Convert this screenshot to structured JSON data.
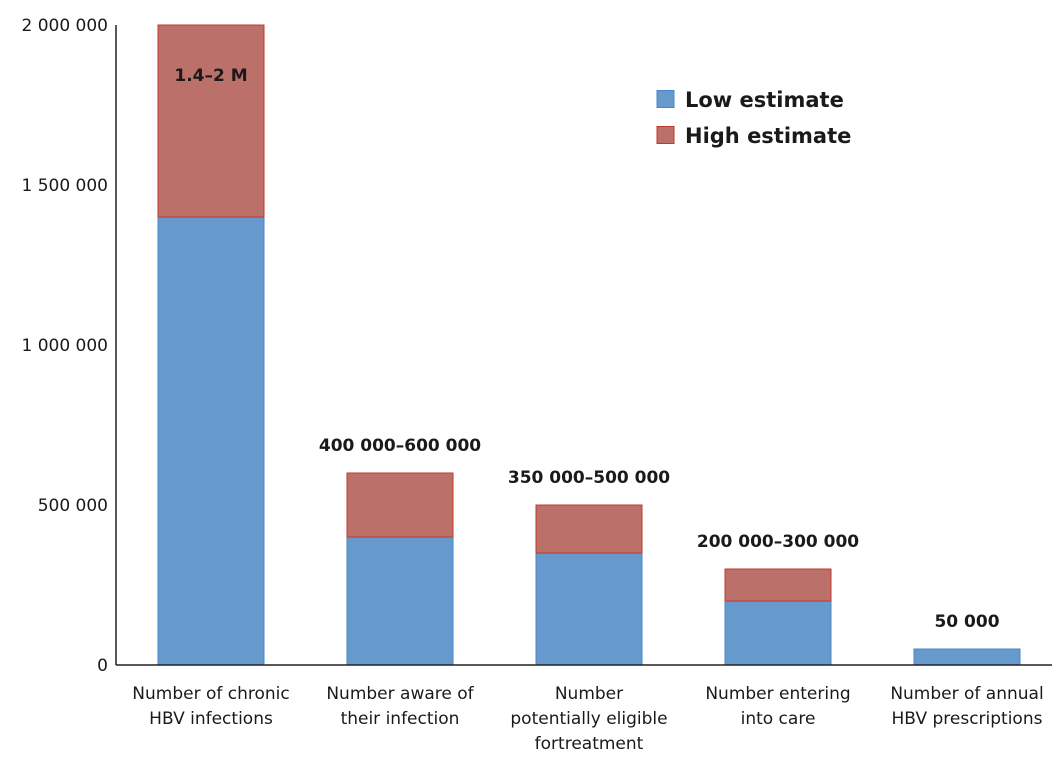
{
  "chart_data": {
    "type": "bar",
    "stacked": true,
    "title": "",
    "xlabel": "",
    "ylabel": "",
    "ylim": [
      0,
      2000000
    ],
    "yticks": [
      0,
      500000,
      1000000,
      1500000,
      2000000
    ],
    "ytick_labels": [
      "0",
      "500 000",
      "1 000 000",
      "1 500 000",
      "2 000 000"
    ],
    "grid": false,
    "legend_position": "top-right",
    "categories": [
      [
        "Number of chronic",
        "HBV infections"
      ],
      [
        "Number aware of",
        "their infection"
      ],
      [
        "Number",
        "potentially eligible",
        "fortreatment"
      ],
      [
        "Number entering",
        "into care"
      ],
      [
        "Number of annual",
        "HBV prescriptions"
      ]
    ],
    "series": [
      {
        "name": "Low estimate",
        "color": "#6699cc",
        "edge_color": "#4a86c5",
        "values": [
          1400000,
          400000,
          350000,
          200000,
          50000
        ]
      },
      {
        "name": "High estimate",
        "color": "#bb706a",
        "edge_color": "#c0392b",
        "values": [
          600000,
          200000,
          150000,
          100000,
          0
        ]
      }
    ],
    "data_labels": [
      "1.4–2 M",
      "400 000–600 000",
      "350 000–500 000",
      "200 000–300 000",
      "50 000"
    ],
    "data_label_placement": [
      "inside-top",
      "above",
      "above",
      "above",
      "above"
    ]
  }
}
